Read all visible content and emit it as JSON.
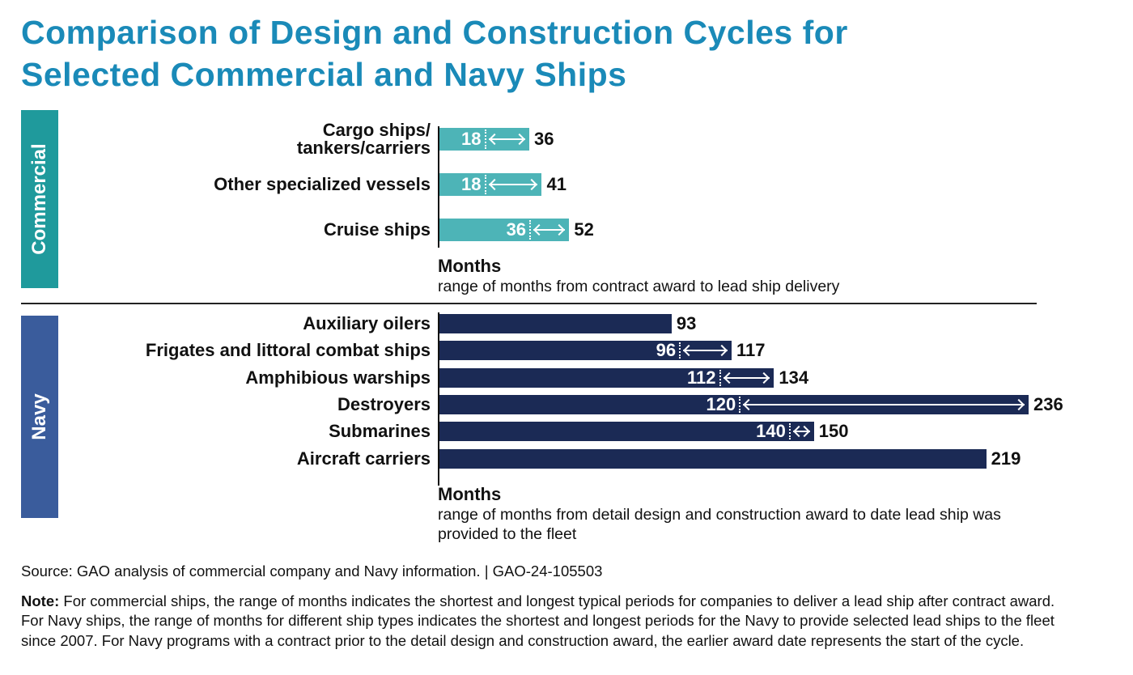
{
  "chart_data": {
    "type": "bar",
    "title": "Comparison of Design and Construction Cycles for Selected Commercial and Navy Ships",
    "colors": {
      "title": "#1a8ab8",
      "commercial_bar": "#4db4b7",
      "commercial_group": "#1f9a9c",
      "navy_bar": "#1b2a55",
      "navy_group": "#3a5c9c"
    },
    "groups": [
      {
        "name": "Commercial",
        "xlabel": "Months",
        "xsublabel": "range of months from contract award to lead ship delivery",
        "categories": [
          "Cargo ships/\ntankers/carriers",
          "Other specialized vessels",
          "Cruise ships"
        ],
        "min": [
          18,
          18,
          36
        ],
        "max": [
          36,
          41,
          52
        ]
      },
      {
        "name": "Navy",
        "xlabel": "Months",
        "xsublabel": "range of months from detail design and construction award to date lead ship was provided to the fleet",
        "categories": [
          "Auxiliary oilers",
          "Frigates and littoral combat ships",
          "Amphibious warships",
          "Destroyers",
          "Submarines",
          "Aircraft carriers"
        ],
        "min": [
          null,
          96,
          112,
          120,
          140,
          null
        ],
        "max": [
          93,
          117,
          134,
          236,
          150,
          219
        ]
      }
    ]
  },
  "title_line1": "Comparison of Design and Construction Cycles for",
  "title_line2": "Selected Commercial and Navy Ships",
  "source": "Source: GAO analysis of commercial company and Navy information.  |  GAO-24-105503",
  "note_label": "Note:",
  "note_text": " For commercial ships, the range of months indicates the shortest and longest typical periods for companies to deliver a lead ship after contract award. For Navy ships, the range of months for different ship types indicates the shortest and longest periods for the Navy to provide selected lead ships to the fleet since 2007. For Navy programs with a contract prior to the detail design and construction award, the earlier award date represents the start of the cycle."
}
